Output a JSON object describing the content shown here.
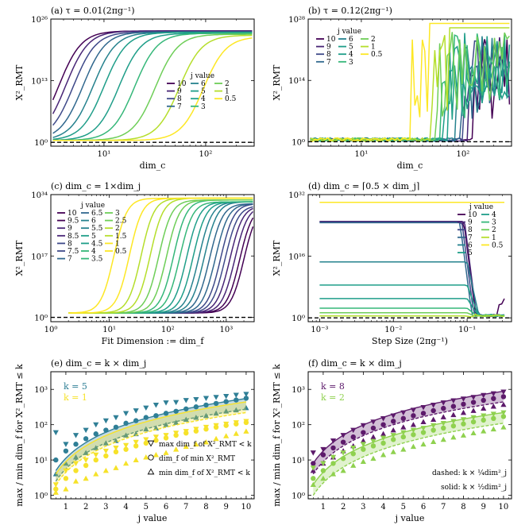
{
  "viridis": [
    "#440154",
    "#482576",
    "#3e4989",
    "#31688e",
    "#26828e",
    "#1f9e89",
    "#35b779",
    "#6ece58",
    "#b5de2b",
    "#fde725"
  ],
  "panels": [
    {
      "id": "a",
      "title": "(a) τ = 0.01(2πg⁻¹)",
      "xlabel": "dim_c",
      "ylabel": "X²_RMT",
      "xscale": "log",
      "xlim": [
        3,
        300
      ],
      "xticks": [
        10,
        100
      ],
      "xtick_labels": [
        "10¹",
        "10²"
      ],
      "yscale": "log",
      "ylim": [
        -0.8,
        26
      ],
      "yticks": [
        0,
        13,
        26
      ],
      "ytick_labels": [
        "10⁰",
        "10¹³",
        "10²⁶"
      ],
      "baseline": 0,
      "legend": {
        "title": "j value",
        "labels": [
          "10",
          "9",
          "8",
          "7",
          "6",
          "5",
          "4",
          "3",
          "2",
          "1",
          "0.5"
        ]
      },
      "series": [
        {
          "j": "10",
          "rise_at": 3.6,
          "plateau": 23.5
        },
        {
          "j": "9",
          "rise_at": 4.2,
          "plateau": 23.5
        },
        {
          "j": "8",
          "rise_at": 5,
          "plateau": 23.3
        },
        {
          "j": "7",
          "rise_at": 6.2,
          "plateau": 23.3
        },
        {
          "j": "6",
          "rise_at": 7.8,
          "plateau": 23.2
        },
        {
          "j": "5",
          "rise_at": 10,
          "plateau": 23.2
        },
        {
          "j": "4",
          "rise_at": 14,
          "plateau": 23
        },
        {
          "j": "3",
          "rise_at": 20,
          "plateau": 23
        },
        {
          "j": "2",
          "rise_at": 32,
          "plateau": 22.8
        },
        {
          "j": "1",
          "rise_at": 55,
          "plateau": 22.6
        },
        {
          "j": "0.5",
          "rise_at": 95,
          "plateau": 22.3
        }
      ]
    },
    {
      "id": "b",
      "title": "(b) τ = 0.12(2πg⁻¹)",
      "xlabel": "dim_c",
      "ylabel": "X²_RMT",
      "xscale": "log",
      "xlim": [
        3,
        300
      ],
      "xticks": [
        10,
        100
      ],
      "xtick_labels": [
        "10¹",
        "10²"
      ],
      "yscale": "log",
      "ylim": [
        -1,
        28
      ],
      "yticks": [
        0,
        14,
        28
      ],
      "ytick_labels": [
        "10⁰",
        "10¹⁴",
        "10²⁸"
      ],
      "baseline": 0,
      "legend": {
        "title": "j value",
        "labels": [
          "10",
          "9",
          "8",
          "7",
          "6",
          "5",
          "4",
          "3",
          "2",
          "1",
          "0.5"
        ]
      },
      "series": [
        {
          "j": "10",
          "rise_at": 160,
          "plateau": 24
        },
        {
          "j": "9",
          "rise_at": 140,
          "plateau": 24
        },
        {
          "j": "8",
          "rise_at": 130,
          "plateau": 24
        },
        {
          "j": "7",
          "rise_at": 120,
          "plateau": 24.5
        },
        {
          "j": "6",
          "rise_at": 110,
          "plateau": 24.5
        },
        {
          "j": "5",
          "rise_at": 90,
          "plateau": 25
        },
        {
          "j": "4",
          "rise_at": 80,
          "plateau": 25
        },
        {
          "j": "3",
          "rise_at": 75,
          "plateau": 25.5
        },
        {
          "j": "2",
          "rise_at": 70,
          "plateau": 26
        },
        {
          "j": "1",
          "rise_at": 60,
          "plateau": 26
        },
        {
          "j": "0.5",
          "rise_at": 38,
          "plateau": 27
        }
      ]
    },
    {
      "id": "c",
      "title": "(c) dim_c = 1×dim_j",
      "xlabel": "Fit Dimension := dim_f",
      "ylabel": "X²_RMT",
      "xscale": "log",
      "xlim": [
        1,
        3000
      ],
      "xticks": [
        1,
        10,
        100,
        1000
      ],
      "xtick_labels": [
        "10⁰",
        "10¹",
        "10²",
        "10³"
      ],
      "yscale": "log",
      "ylim": [
        -1.2,
        34
      ],
      "yticks": [
        0,
        17,
        34
      ],
      "ytick_labels": [
        "10⁰",
        "10¹⁷",
        "10³⁴"
      ],
      "baseline": 0,
      "legend": {
        "title": "j value",
        "labels": [
          "10",
          "9.5",
          "9",
          "8.5",
          "8",
          "7.5",
          "7",
          "6.5",
          "6",
          "5.5",
          "5",
          "4.5",
          "4",
          "3.5",
          "3",
          "2.5",
          "2",
          "1.5",
          "1",
          "0.5"
        ]
      },
      "series": [
        {
          "j": "10",
          "rise_at": 2000,
          "plateau": 31
        },
        {
          "j": "9.5",
          "rise_at": 1700,
          "plateau": 31
        },
        {
          "j": "9",
          "rise_at": 1400,
          "plateau": 31
        },
        {
          "j": "8.5",
          "rise_at": 1150,
          "plateau": 31
        },
        {
          "j": "8",
          "rise_at": 950,
          "plateau": 31
        },
        {
          "j": "7.5",
          "rise_at": 800,
          "plateau": 31.5
        },
        {
          "j": "7",
          "rise_at": 650,
          "plateau": 31.5
        },
        {
          "j": "6.5",
          "rise_at": 520,
          "plateau": 31.5
        },
        {
          "j": "6",
          "rise_at": 420,
          "plateau": 32
        },
        {
          "j": "5.5",
          "rise_at": 340,
          "plateau": 32
        },
        {
          "j": "5",
          "rise_at": 270,
          "plateau": 32
        },
        {
          "j": "4.5",
          "rise_at": 210,
          "plateau": 32
        },
        {
          "j": "4",
          "rise_at": 160,
          "plateau": 32
        },
        {
          "j": "3.5",
          "rise_at": 125,
          "plateau": 32.5
        },
        {
          "j": "3",
          "rise_at": 95,
          "plateau": 32.5
        },
        {
          "j": "2.5",
          "rise_at": 70,
          "plateau": 32.5
        },
        {
          "j": "2",
          "rise_at": 50,
          "plateau": 33
        },
        {
          "j": "1.5",
          "rise_at": 35,
          "plateau": 33
        },
        {
          "j": "1",
          "rise_at": 22,
          "plateau": 33
        },
        {
          "j": "0.5",
          "rise_at": 12,
          "plateau": 33
        }
      ]
    },
    {
      "id": "d",
      "title": "(d) dim_c = ⌈0.5 × dim_j⌉",
      "xlabel": "Step Size (2πg⁻¹)",
      "ylabel": "X²_RMT",
      "xscale": "log",
      "xlim": [
        0.0007,
        0.4
      ],
      "xticks": [
        0.001,
        0.01,
        0.1
      ],
      "xtick_labels": [
        "10⁻³",
        "10⁻²",
        "10⁻¹"
      ],
      "yscale": "log",
      "ylim": [
        -1,
        32
      ],
      "yticks": [
        0,
        16,
        32
      ],
      "ytick_labels": [
        "10⁰",
        "10¹⁶",
        "10³²"
      ],
      "baseline": 0,
      "legend": {
        "title": "j value",
        "labels": [
          "10",
          "9",
          "8",
          "7",
          "6",
          "5",
          "4",
          "3",
          "2",
          "1",
          "0.5"
        ]
      },
      "series": [
        {
          "j": "10",
          "level": 25,
          "drop_at": 0.09
        },
        {
          "j": "9",
          "level": 25,
          "drop_at": 0.092
        },
        {
          "j": "8",
          "level": 24.8,
          "drop_at": 0.085
        },
        {
          "j": "7",
          "level": 24.7,
          "drop_at": 0.08
        },
        {
          "j": "6",
          "level": 14.5,
          "drop_at": 0.1
        },
        {
          "j": "5",
          "level": 8.5,
          "drop_at": 0.1
        },
        {
          "j": "4",
          "level": 5,
          "drop_at": 0.1
        },
        {
          "j": "3",
          "level": 2.5,
          "drop_at": 0.1
        },
        {
          "j": "2",
          "level": 1.3,
          "drop_at": 0.1
        },
        {
          "j": "1",
          "level": 0.5,
          "drop_at": 0.1
        },
        {
          "j": "0.5",
          "level": 30,
          "drop_at": 0.4
        }
      ]
    },
    {
      "id": "e",
      "title": "(e) dim_c = k × dim_j",
      "xlabel": "j value",
      "ylabel": "max / min dim_f for X²_RMT ≤ k",
      "xscale": "linear",
      "xlim": [
        0.25,
        10.4
      ],
      "xticks": [
        1,
        2,
        3,
        4,
        5,
        6,
        7,
        8,
        9,
        10
      ],
      "xtick_labels": [
        "1",
        "2",
        "3",
        "4",
        "5",
        "6",
        "7",
        "8",
        "9",
        "10"
      ],
      "yscale": "log",
      "ylim": [
        -0.1,
        3.5
      ],
      "yticks": [
        0,
        1,
        2,
        3
      ],
      "ytick_labels": [
        "10⁰",
        "10¹",
        "10²",
        "10³"
      ],
      "legend_k": [
        {
          "label": "k = 5",
          "color": "#2f7f96"
        },
        {
          "label": "k = 1",
          "color": "#f6e22a"
        }
      ],
      "marker_legend": [
        "max dim_f of X²_RMT < k",
        "dim_f of min X²_RMT",
        "min dim_f of X²_RMT < k"
      ],
      "k_series": [
        {
          "k": 5,
          "color": "#2f7f96",
          "coef_dashed": 1.25,
          "coef_solid": 2.5,
          "offset": 1,
          "j": [
            0.5,
            1,
            1.5,
            2,
            2.5,
            3,
            3.5,
            4,
            4.5,
            5,
            5.5,
            6,
            6.5,
            7,
            7.5,
            8,
            8.5,
            9,
            9.5,
            10
          ],
          "max_dim": [
            60,
            28,
            50,
            70,
            100,
            130,
            160,
            210,
            250,
            300,
            360,
            420,
            430,
            490,
            520,
            560,
            600,
            640,
            690,
            730
          ],
          "min_X_dim": [
            10,
            18,
            28,
            40,
            55,
            70,
            85,
            110,
            130,
            160,
            180,
            210,
            240,
            280,
            320,
            360,
            400,
            450,
            500,
            560
          ],
          "min_dim": [
            4,
            8,
            12,
            16,
            22,
            30,
            35,
            50,
            55,
            75,
            80,
            100,
            115,
            140,
            160,
            180,
            210,
            240,
            260,
            300
          ]
        },
        {
          "k": 1,
          "color": "#f6e22a",
          "coef_dashed": 1,
          "coef_solid": 2,
          "offset": 0,
          "j": [
            0.5,
            1,
            1.5,
            2,
            2.5,
            3,
            3.5,
            4,
            4.5,
            5,
            5.5,
            6,
            6.5,
            7,
            7.5,
            8,
            8.5,
            9,
            9.5,
            10
          ],
          "max_dim": [
            2,
            5,
            8,
            10,
            14,
            18,
            22,
            26,
            32,
            38,
            45,
            50,
            58,
            65,
            75,
            85,
            95,
            105,
            115,
            125
          ],
          "min_X_dim": [
            1.5,
            3,
            5,
            7,
            10,
            13,
            17,
            20,
            25,
            30,
            36,
            42,
            50,
            58,
            66,
            75,
            85,
            95,
            105,
            115
          ],
          "min_dim": [
            1.2,
            1.5,
            2.5,
            3,
            4,
            5,
            6,
            8,
            10,
            12,
            14,
            16,
            20,
            24,
            28,
            32,
            40,
            48,
            56,
            65
          ]
        }
      ]
    },
    {
      "id": "f",
      "title": "(f) dim_c = k × dim_j",
      "xlabel": "j value",
      "ylabel": "max / min dim_f for X²_RMT ≤ k",
      "xscale": "linear",
      "xlim": [
        0.25,
        10.4
      ],
      "xticks": [
        1,
        2,
        3,
        4,
        5,
        6,
        7,
        8,
        9,
        10
      ],
      "xtick_labels": [
        "1",
        "2",
        "3",
        "4",
        "5",
        "6",
        "7",
        "8",
        "9",
        "10"
      ],
      "yscale": "log",
      "ylim": [
        -0.1,
        3.5
      ],
      "yticks": [
        0,
        1,
        2,
        3
      ],
      "ytick_labels": [
        "10⁰",
        "10¹",
        "10²",
        "10³"
      ],
      "legend_k": [
        {
          "label": "k = 8",
          "color": "#5d1a6b"
        },
        {
          "label": "k = 2",
          "color": "#8fd14f"
        }
      ],
      "annotations": [
        "dashed: k × ¼dim²_j",
        "solid: k × ½dim²_j"
      ],
      "k_series": [
        {
          "k": 8,
          "color": "#5d1a6b",
          "coef_dashed": 2,
          "coef_solid": 4,
          "offset": 1,
          "j": [
            0.5,
            1,
            1.5,
            2,
            2.5,
            3,
            3.5,
            4,
            4.5,
            5,
            5.5,
            6,
            6.5,
            7,
            7.5,
            8,
            8.5,
            9,
            9.5,
            10
          ],
          "max_dim": [
            16,
            20,
            35,
            50,
            70,
            95,
            120,
            150,
            180,
            220,
            260,
            310,
            360,
            420,
            480,
            540,
            600,
            680,
            760,
            850
          ],
          "min_X_dim": [
            8,
            14,
            22,
            32,
            45,
            60,
            80,
            100,
            125,
            150,
            180,
            210,
            250,
            290,
            330,
            380,
            430,
            490,
            550,
            620
          ],
          "min_dim": [
            5,
            8,
            12,
            18,
            25,
            35,
            45,
            55,
            70,
            85,
            100,
            120,
            140,
            165,
            190,
            220,
            250,
            290,
            330,
            370
          ]
        },
        {
          "k": 2,
          "color": "#8fd14f",
          "coef_dashed": 0.5,
          "coef_solid": 1,
          "offset": 1,
          "j": [
            0.5,
            1,
            1.5,
            2,
            2.5,
            3,
            3.5,
            4,
            4.5,
            5,
            5.5,
            6,
            6.5,
            7,
            7.5,
            8,
            8.5,
            9,
            9.5,
            10
          ],
          "max_dim": [
            6,
            8,
            12,
            16,
            22,
            28,
            34,
            42,
            50,
            60,
            70,
            80,
            95,
            110,
            125,
            140,
            160,
            180,
            200,
            220
          ],
          "min_X_dim": [
            3,
            5,
            8,
            11,
            15,
            20,
            25,
            30,
            38,
            45,
            52,
            60,
            70,
            80,
            92,
            105,
            120,
            135,
            150,
            170
          ],
          "min_dim": [
            2,
            3,
            4,
            5,
            7,
            9,
            11,
            14,
            17,
            20,
            24,
            28,
            33,
            38,
            44,
            50,
            58,
            66,
            75,
            85
          ]
        }
      ]
    }
  ]
}
